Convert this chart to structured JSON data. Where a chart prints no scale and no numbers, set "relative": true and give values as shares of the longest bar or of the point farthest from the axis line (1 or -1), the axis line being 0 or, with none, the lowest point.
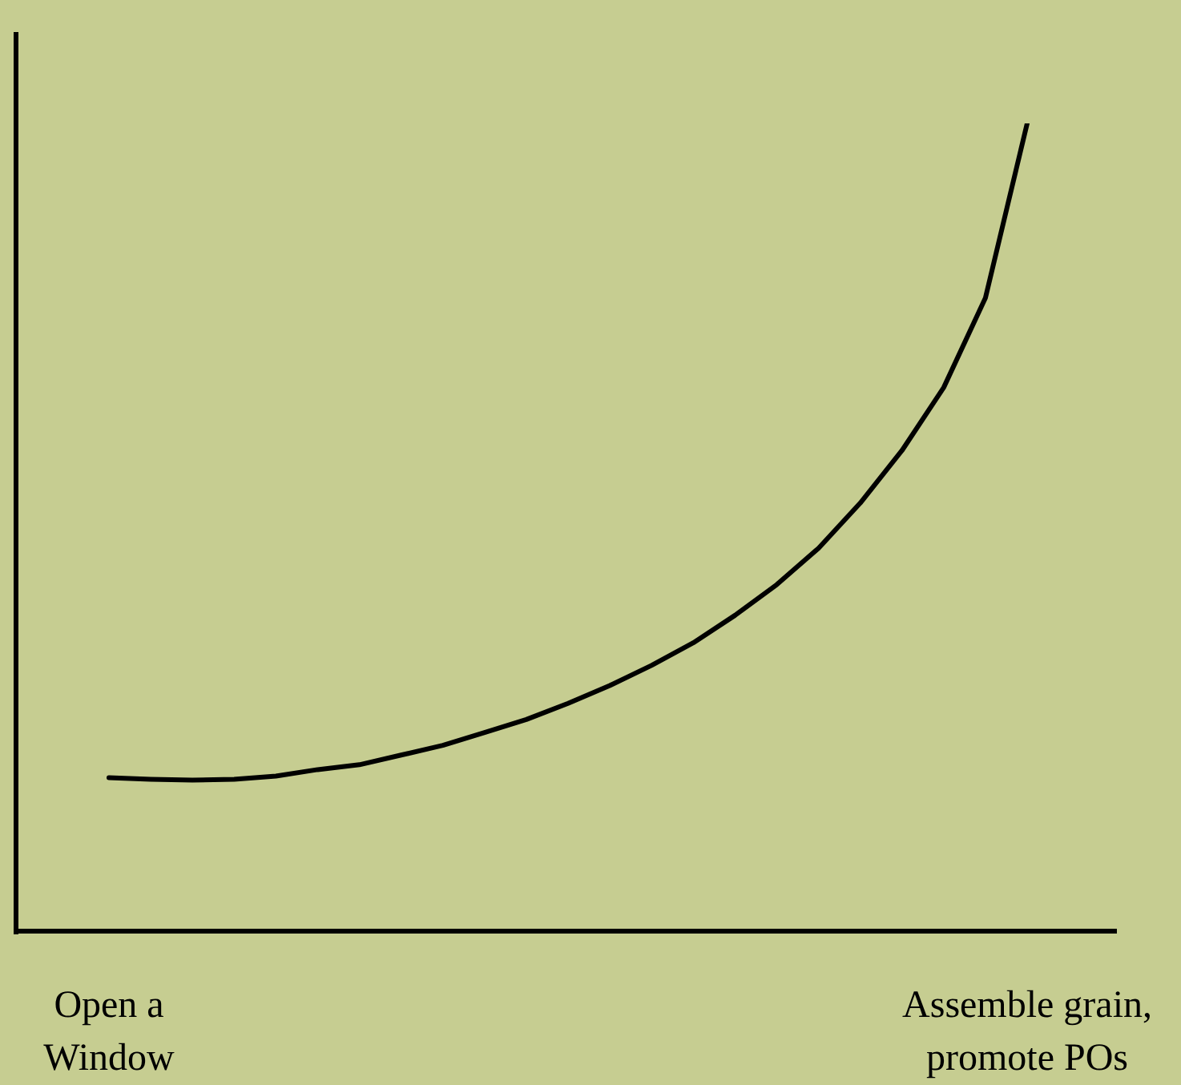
{
  "chart_data": {
    "type": "line",
    "relative": true,
    "color": "#000000",
    "marker": "none",
    "line_style": "solid",
    "legend": false,
    "categories": [
      "Open a Window",
      null,
      null,
      null,
      null,
      null,
      null,
      null,
      null,
      null,
      null,
      null,
      null,
      null,
      null,
      null,
      null,
      null,
      null,
      null,
      null,
      null,
      "Assemble grain, promote POs"
    ],
    "values": [
      0.19,
      0.188,
      0.187,
      0.188,
      0.192,
      0.2,
      0.206,
      0.218,
      0.23,
      0.246,
      0.262,
      0.282,
      0.304,
      0.329,
      0.357,
      0.391,
      0.429,
      0.474,
      0.53,
      0.595,
      0.673,
      0.784,
      1
    ]
  }
}
